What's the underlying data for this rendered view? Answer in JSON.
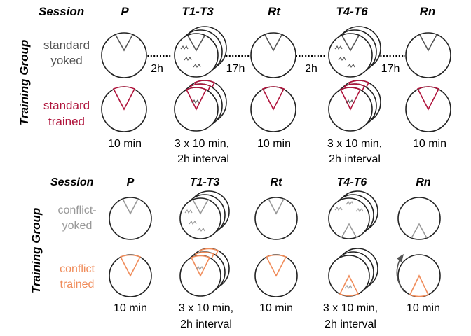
{
  "colors": {
    "standard_yoked": "#555555",
    "standard_trained": "#b0143c",
    "conflict_yoked": "#999999",
    "conflict_trained": "#f08c5a",
    "outline": "#222222"
  },
  "panel_standard": {
    "session_label": "Session",
    "sessions": [
      "P",
      "T1-T3",
      "Rt",
      "T4-T6",
      "Rn"
    ],
    "axis_label": "Training Group",
    "groups": [
      {
        "line1": "standard",
        "line2": "yoked"
      },
      {
        "line1": "standard",
        "line2": "trained"
      }
    ],
    "gaps": [
      "2h",
      "17h",
      "2h",
      "17h"
    ],
    "durations": [
      {
        "line1": "10 min",
        "line2": ""
      },
      {
        "line1": "3 x 10 min,",
        "line2": "2h interval"
      },
      {
        "line1": "10 min",
        "line2": ""
      },
      {
        "line1": "3 x 10 min,",
        "line2": "2h interval"
      },
      {
        "line1": "10 min",
        "line2": ""
      }
    ]
  },
  "panel_conflict": {
    "session_label": "Session",
    "sessions": [
      "P",
      "T1-T3",
      "Rt",
      "T4-T6",
      "Rn"
    ],
    "axis_label": "Training Group",
    "groups": [
      {
        "line1": "conflict-",
        "line2": "yoked"
      },
      {
        "line1": "conflict",
        "line2": "trained"
      }
    ],
    "durations": [
      {
        "line1": "10 min",
        "line2": ""
      },
      {
        "line1": "3 x 10 min,",
        "line2": "2h interval"
      },
      {
        "line1": "10 min",
        "line2": ""
      },
      {
        "line1": "3 x 10 min,",
        "line2": "2h interval"
      },
      {
        "line1": "10 min",
        "line2": ""
      }
    ]
  }
}
